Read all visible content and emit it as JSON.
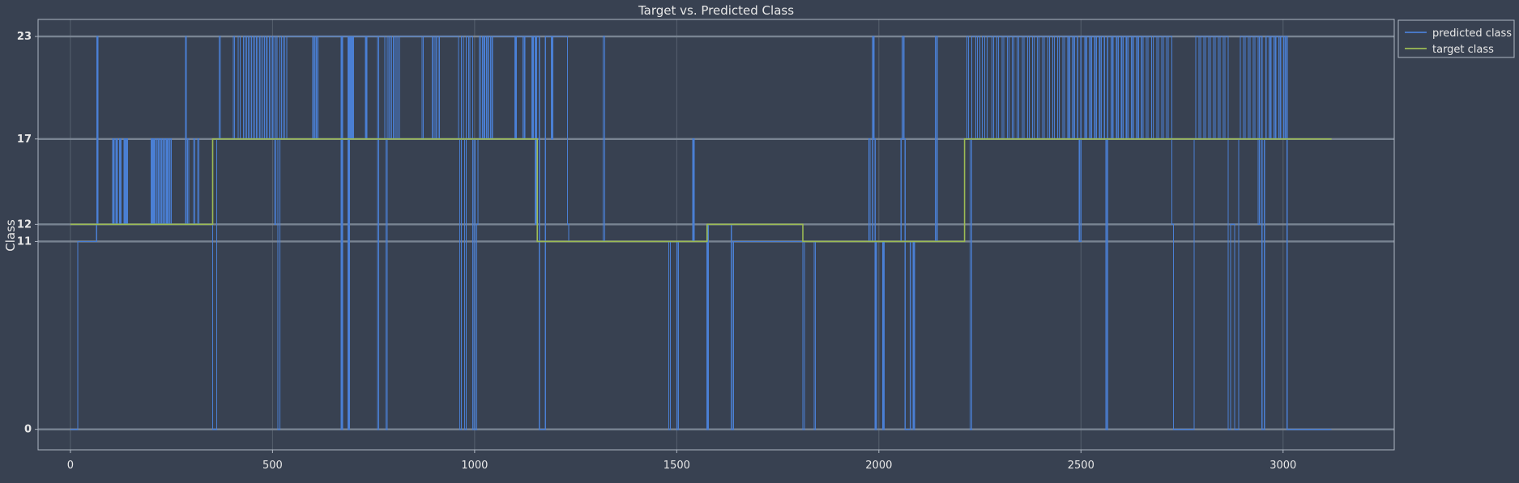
{
  "chart_data": {
    "type": "line",
    "title": "Target vs. Predicted Class",
    "xlabel": "",
    "ylabel": "Class",
    "xlim": [
      -80,
      3275
    ],
    "ylim": [
      -1.2,
      24
    ],
    "xticks": [
      0,
      500,
      1000,
      1500,
      2000,
      2500,
      3000
    ],
    "yticks": [
      0,
      11,
      12,
      17,
      23
    ],
    "grid": true,
    "legend_position": "top-right, outside plot",
    "colors": {
      "background": "#384151",
      "predicted": "#4a7fd4",
      "target": "#9cbb54",
      "grid": "#56606e",
      "hline": "#7d8896",
      "axis_text": "#e8e8e8"
    },
    "series": [
      {
        "name": "predicted class",
        "segments": [
          [
            0,
            0
          ],
          [
            18,
            11
          ],
          [
            65,
            12
          ],
          [
            66,
            23
          ],
          [
            68,
            12
          ],
          [
            105,
            17
          ],
          [
            108,
            12
          ],
          [
            113,
            17
          ],
          [
            116,
            12
          ],
          [
            122,
            17
          ],
          [
            125,
            12
          ],
          [
            133,
            17
          ],
          [
            135,
            12
          ],
          [
            138,
            17
          ],
          [
            141,
            12
          ],
          [
            200,
            17
          ],
          [
            203,
            12
          ],
          [
            206,
            17
          ],
          [
            209,
            12
          ],
          [
            214,
            17
          ],
          [
            218,
            12
          ],
          [
            222,
            17
          ],
          [
            226,
            12
          ],
          [
            230,
            17
          ],
          [
            234,
            12
          ],
          [
            238,
            17
          ],
          [
            241,
            12
          ],
          [
            245,
            17
          ],
          [
            249,
            12
          ],
          [
            285,
            23
          ],
          [
            287,
            12
          ],
          [
            290,
            17
          ],
          [
            293,
            12
          ],
          [
            305,
            17
          ],
          [
            308,
            12
          ],
          [
            315,
            17
          ],
          [
            318,
            12
          ],
          [
            352,
            0
          ],
          [
            362,
            17
          ],
          [
            368,
            23
          ],
          [
            371,
            17
          ],
          [
            403,
            23
          ],
          [
            406,
            17
          ],
          [
            415,
            23
          ],
          [
            420,
            17
          ],
          [
            428,
            23
          ],
          [
            432,
            17
          ],
          [
            436,
            23
          ],
          [
            440,
            17
          ],
          [
            444,
            23
          ],
          [
            448,
            17
          ],
          [
            452,
            23
          ],
          [
            456,
            17
          ],
          [
            460,
            23
          ],
          [
            463,
            17
          ],
          [
            468,
            23
          ],
          [
            471,
            17
          ],
          [
            476,
            23
          ],
          [
            480,
            17
          ],
          [
            484,
            23
          ],
          [
            487,
            17
          ],
          [
            492,
            23
          ],
          [
            496,
            17
          ],
          [
            500,
            23
          ],
          [
            503,
            17
          ],
          [
            505,
            12
          ],
          [
            508,
            23
          ],
          [
            511,
            17
          ],
          [
            513,
            0
          ],
          [
            518,
            23
          ],
          [
            522,
            17
          ],
          [
            526,
            23
          ],
          [
            530,
            17
          ],
          [
            535,
            23
          ],
          [
            600,
            17
          ],
          [
            604,
            23
          ],
          [
            608,
            17
          ],
          [
            612,
            23
          ],
          [
            670,
            0
          ],
          [
            673,
            23
          ],
          [
            687,
            0
          ],
          [
            690,
            23
          ],
          [
            693,
            17
          ],
          [
            696,
            23
          ],
          [
            698,
            17
          ],
          [
            700,
            23
          ],
          [
            730,
            17
          ],
          [
            733,
            23
          ],
          [
            760,
            0
          ],
          [
            763,
            23
          ],
          [
            778,
            17
          ],
          [
            781,
            0
          ],
          [
            784,
            23
          ],
          [
            788,
            17
          ],
          [
            791,
            23
          ],
          [
            795,
            17
          ],
          [
            799,
            23
          ],
          [
            802,
            17
          ],
          [
            806,
            23
          ],
          [
            810,
            17
          ],
          [
            814,
            23
          ],
          [
            870,
            17
          ],
          [
            873,
            23
          ],
          [
            895,
            17
          ],
          [
            898,
            23
          ],
          [
            902,
            17
          ],
          [
            905,
            23
          ],
          [
            910,
            17
          ],
          [
            913,
            23
          ],
          [
            960,
            17
          ],
          [
            963,
            0
          ],
          [
            967,
            23
          ],
          [
            972,
            17
          ],
          [
            975,
            0
          ],
          [
            979,
            23
          ],
          [
            985,
            17
          ],
          [
            988,
            23
          ],
          [
            995,
            0
          ],
          [
            998,
            17
          ],
          [
            1001,
            0
          ],
          [
            1005,
            12
          ],
          [
            1008,
            17
          ],
          [
            1011,
            23
          ],
          [
            1015,
            17
          ],
          [
            1019,
            23
          ],
          [
            1022,
            17
          ],
          [
            1025,
            23
          ],
          [
            1030,
            17
          ],
          [
            1034,
            23
          ],
          [
            1040,
            17
          ],
          [
            1044,
            23
          ],
          [
            1100,
            17
          ],
          [
            1103,
            23
          ],
          [
            1120,
            17
          ],
          [
            1124,
            23
          ],
          [
            1142,
            17
          ],
          [
            1145,
            23
          ],
          [
            1150,
            12
          ],
          [
            1153,
            23
          ],
          [
            1160,
            0
          ],
          [
            1175,
            23
          ],
          [
            1190,
            17
          ],
          [
            1193,
            23
          ],
          [
            1230,
            12
          ],
          [
            1233,
            11
          ],
          [
            1318,
            23
          ],
          [
            1322,
            11
          ],
          [
            1480,
            0
          ],
          [
            1484,
            11
          ],
          [
            1500,
            0
          ],
          [
            1504,
            11
          ],
          [
            1540,
            17
          ],
          [
            1543,
            11
          ],
          [
            1575,
            0
          ],
          [
            1578,
            12
          ],
          [
            1635,
            0
          ],
          [
            1640,
            11
          ],
          [
            1812,
            0
          ],
          [
            1816,
            11
          ],
          [
            1840,
            0
          ],
          [
            1843,
            11
          ],
          [
            1975,
            17
          ],
          [
            1978,
            11
          ],
          [
            1985,
            23
          ],
          [
            1988,
            17
          ],
          [
            1991,
            0
          ],
          [
            1994,
            11
          ],
          [
            2010,
            0
          ],
          [
            2013,
            11
          ],
          [
            2055,
            17
          ],
          [
            2058,
            23
          ],
          [
            2062,
            17
          ],
          [
            2065,
            0
          ],
          [
            2078,
            11
          ],
          [
            2085,
            0
          ],
          [
            2088,
            11
          ],
          [
            2140,
            23
          ],
          [
            2144,
            11
          ],
          [
            2212,
            17
          ],
          [
            2218,
            23
          ],
          [
            2222,
            17
          ],
          [
            2226,
            0
          ],
          [
            2230,
            23
          ],
          [
            2240,
            17
          ],
          [
            2244,
            23
          ],
          [
            2250,
            17
          ],
          [
            2256,
            23
          ],
          [
            2262,
            17
          ],
          [
            2268,
            23
          ],
          [
            2280,
            17
          ],
          [
            2284,
            23
          ],
          [
            2292,
            17
          ],
          [
            2296,
            23
          ],
          [
            2305,
            17
          ],
          [
            2309,
            23
          ],
          [
            2318,
            17
          ],
          [
            2322,
            23
          ],
          [
            2330,
            17
          ],
          [
            2334,
            23
          ],
          [
            2342,
            17
          ],
          [
            2346,
            23
          ],
          [
            2355,
            17
          ],
          [
            2359,
            23
          ],
          [
            2368,
            17
          ],
          [
            2372,
            23
          ],
          [
            2380,
            17
          ],
          [
            2384,
            23
          ],
          [
            2392,
            17
          ],
          [
            2396,
            23
          ],
          [
            2405,
            17
          ],
          [
            2409,
            23
          ],
          [
            2418,
            17
          ],
          [
            2422,
            23
          ],
          [
            2430,
            17
          ],
          [
            2434,
            23
          ],
          [
            2442,
            17
          ],
          [
            2446,
            23
          ],
          [
            2455,
            17
          ],
          [
            2459,
            23
          ],
          [
            2468,
            17
          ],
          [
            2472,
            23
          ],
          [
            2480,
            17
          ],
          [
            2484,
            23
          ],
          [
            2492,
            17
          ],
          [
            2496,
            11
          ],
          [
            2500,
            23
          ],
          [
            2510,
            17
          ],
          [
            2514,
            23
          ],
          [
            2522,
            17
          ],
          [
            2526,
            23
          ],
          [
            2534,
            17
          ],
          [
            2538,
            23
          ],
          [
            2546,
            17
          ],
          [
            2550,
            23
          ],
          [
            2558,
            17
          ],
          [
            2562,
            0
          ],
          [
            2566,
            23
          ],
          [
            2575,
            17
          ],
          [
            2579,
            23
          ],
          [
            2588,
            17
          ],
          [
            2592,
            23
          ],
          [
            2600,
            17
          ],
          [
            2604,
            23
          ],
          [
            2612,
            17
          ],
          [
            2616,
            23
          ],
          [
            2625,
            17
          ],
          [
            2629,
            23
          ],
          [
            2638,
            17
          ],
          [
            2642,
            23
          ],
          [
            2650,
            17
          ],
          [
            2654,
            23
          ],
          [
            2662,
            17
          ],
          [
            2666,
            23
          ],
          [
            2675,
            17
          ],
          [
            2679,
            23
          ],
          [
            2688,
            17
          ],
          [
            2692,
            23
          ],
          [
            2700,
            17
          ],
          [
            2704,
            23
          ],
          [
            2712,
            17
          ],
          [
            2716,
            23
          ],
          [
            2725,
            12
          ],
          [
            2729,
            0
          ],
          [
            2780,
            17
          ],
          [
            2784,
            23
          ],
          [
            2792,
            17
          ],
          [
            2796,
            23
          ],
          [
            2804,
            17
          ],
          [
            2808,
            23
          ],
          [
            2816,
            17
          ],
          [
            2820,
            23
          ],
          [
            2828,
            17
          ],
          [
            2832,
            23
          ],
          [
            2840,
            17
          ],
          [
            2844,
            23
          ],
          [
            2852,
            17
          ],
          [
            2856,
            23
          ],
          [
            2864,
            0
          ],
          [
            2870,
            12
          ],
          [
            2880,
            0
          ],
          [
            2890,
            17
          ],
          [
            2894,
            23
          ],
          [
            2902,
            17
          ],
          [
            2906,
            23
          ],
          [
            2914,
            17
          ],
          [
            2918,
            23
          ],
          [
            2926,
            17
          ],
          [
            2930,
            23
          ],
          [
            2938,
            12
          ],
          [
            2942,
            23
          ],
          [
            2948,
            0
          ],
          [
            2954,
            17
          ],
          [
            2958,
            23
          ],
          [
            2966,
            17
          ],
          [
            2970,
            23
          ],
          [
            2978,
            17
          ],
          [
            2982,
            23
          ],
          [
            2990,
            17
          ],
          [
            2994,
            23
          ],
          [
            3002,
            17
          ],
          [
            3006,
            23
          ],
          [
            3010,
            0
          ],
          [
            3120,
            0
          ]
        ]
      },
      {
        "name": "target class",
        "segments": [
          [
            0,
            12
          ],
          [
            352,
            12
          ],
          [
            352,
            17
          ],
          [
            1155,
            17
          ],
          [
            1155,
            11
          ],
          [
            1575,
            11
          ],
          [
            1575,
            12
          ],
          [
            1812,
            12
          ],
          [
            1812,
            11
          ],
          [
            2212,
            11
          ],
          [
            2212,
            17
          ],
          [
            3120,
            17
          ]
        ]
      }
    ]
  }
}
